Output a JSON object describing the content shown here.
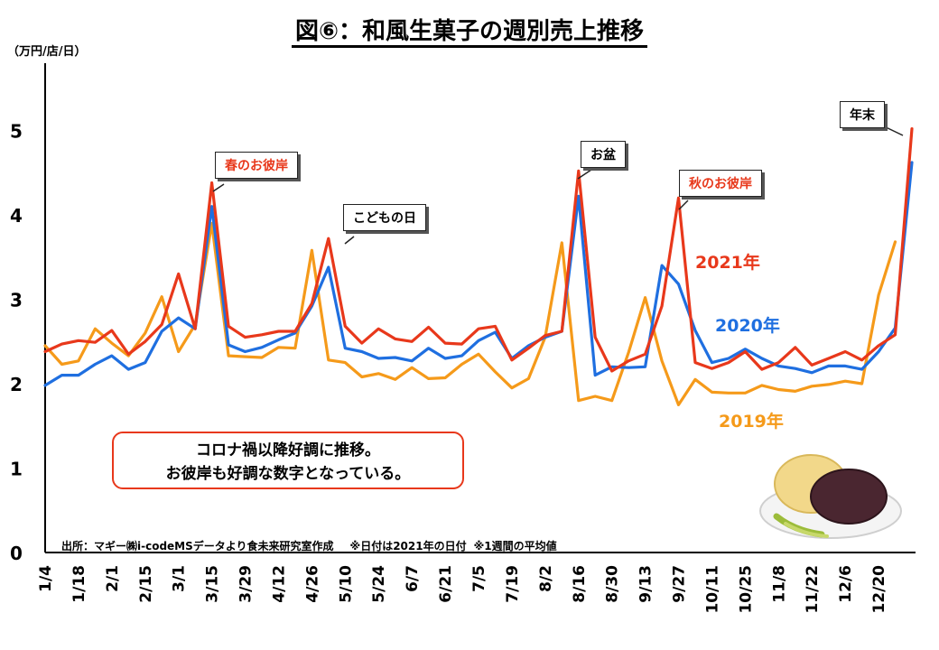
{
  "title": "図⑥：和風生菓子の週別売上推移",
  "unit": "（万円/店/日）",
  "callouts": {
    "spring": "春のお彼岸",
    "kodomo": "こどもの日",
    "obon": "お盆",
    "autumn": "秋のお彼岸",
    "yearend": "年末"
  },
  "note": {
    "line1": "コロナ禍以降好調に推移。",
    "line2": "お彼岸も好調な数字となっている。"
  },
  "source": {
    "text": "出所：マギー㈱i-codeMSデータより食未来研究室作成",
    "note1": "※日付は2021年の日付",
    "note2": "※1週間の平均値"
  },
  "colors": {
    "2021": "#e8381b",
    "2020": "#1f6fe0",
    "2019": "#f59a1a"
  },
  "chart_data": {
    "type": "line",
    "title": "図⑥：和風生菓子の週別売上推移",
    "ylabel": "（万円/店/日）",
    "ylim": [
      0,
      5.8
    ],
    "yticks": [
      0,
      1,
      2,
      3,
      4,
      5
    ],
    "xtick_labels": [
      "1/4",
      "1/18",
      "2/1",
      "2/15",
      "3/1",
      "3/15",
      "3/29",
      "4/12",
      "4/26",
      "5/10",
      "5/24",
      "6/7",
      "6/21",
      "7/5",
      "7/19",
      "8/2",
      "8/16",
      "8/30",
      "9/13",
      "9/27",
      "10/11",
      "10/25",
      "11/8",
      "11/22",
      "12/6",
      "12/20"
    ],
    "series": [
      {
        "name": "2021年",
        "values": [
          2.38,
          2.47,
          2.51,
          2.49,
          2.63,
          2.35,
          2.5,
          2.7,
          3.3,
          2.65,
          4.38,
          2.68,
          2.55,
          2.58,
          2.62,
          2.62,
          2.95,
          3.72,
          2.68,
          2.48,
          2.65,
          2.53,
          2.5,
          2.67,
          2.48,
          2.47,
          2.65,
          2.68,
          2.28,
          2.42,
          2.57,
          2.62,
          4.52,
          2.55,
          2.15,
          2.27,
          2.35,
          2.92,
          4.2,
          2.25,
          2.18,
          2.25,
          2.38,
          2.17,
          2.25,
          2.43,
          2.22,
          2.3,
          2.38,
          2.28,
          2.45,
          2.58,
          5.02
        ]
      },
      {
        "name": "2020年",
        "values": [
          1.98,
          2.1,
          2.1,
          2.23,
          2.33,
          2.17,
          2.25,
          2.62,
          2.78,
          2.65,
          4.1,
          2.46,
          2.38,
          2.43,
          2.52,
          2.6,
          2.92,
          3.38,
          2.42,
          2.38,
          2.3,
          2.31,
          2.27,
          2.42,
          2.3,
          2.33,
          2.51,
          2.61,
          2.3,
          2.45,
          2.55,
          2.62,
          4.22,
          2.1,
          2.2,
          2.19,
          2.2,
          3.4,
          3.18,
          2.63,
          2.25,
          2.3,
          2.41,
          2.3,
          2.21,
          2.18,
          2.13,
          2.21,
          2.21,
          2.17,
          2.38,
          2.66,
          4.62
        ]
      },
      {
        "name": "2019年",
        "values": [
          2.45,
          2.23,
          2.27,
          2.65,
          2.48,
          2.33,
          2.6,
          3.03,
          2.38,
          2.7,
          3.9,
          2.33,
          2.32,
          2.31,
          2.43,
          2.42,
          3.58,
          2.28,
          2.25,
          2.08,
          2.12,
          2.05,
          2.19,
          2.06,
          2.07,
          2.23,
          2.35,
          2.14,
          1.95,
          2.06,
          2.55,
          3.67,
          1.8,
          1.85,
          1.8,
          2.37,
          3.02,
          2.27,
          1.75,
          2.05,
          1.9,
          1.89,
          1.89,
          1.98,
          1.93,
          1.91,
          1.97,
          1.99,
          2.03,
          2.0,
          3.05,
          3.68
        ]
      }
    ]
  }
}
